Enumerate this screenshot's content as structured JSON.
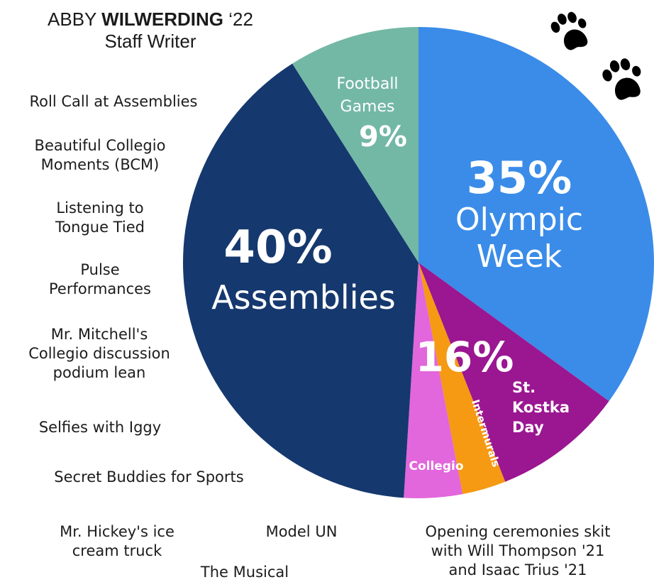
{
  "byline": {
    "author_first": "ABBY",
    "author_last": "WILWERDING",
    "class_year": "‘22",
    "role": "Staff Writer"
  },
  "left_items": [
    "Roll Call at Assemblies",
    "Beautiful Collegio\nMoments (BCM)",
    "Listening to\nTongue Tied",
    "Pulse\nPerformances",
    "Mr. Mitchell's\nCollegio discussion\npodium lean",
    "Selfies with Iggy",
    "Secret Buddies for Sports"
  ],
  "bottom_items": [
    "Mr. Hickey's ice\ncream truck",
    "Model  UN",
    "Opening ceremonies skit\nwith Will Thompson '21\nand Isaac Trius '21",
    "The Musical"
  ],
  "icons": [
    "paw-print-icon",
    "paw-print-icon"
  ],
  "chart_data": {
    "type": "pie",
    "slices": [
      {
        "label": "Olympic Week",
        "value": 35,
        "value_label": "35%",
        "color": "#3a8ce8"
      },
      {
        "label": "St. Kostka Day",
        "value": 9,
        "value_label": "",
        "color": "#9b1691"
      },
      {
        "label": "Intermurals",
        "value": 3,
        "value_label": "",
        "color": "#f59a12"
      },
      {
        "label": "Collegio",
        "value": 4,
        "value_label": "",
        "color": "#e266dc"
      },
      {
        "label": "Assemblies",
        "value": 40,
        "value_label": "40%",
        "color": "#15386e"
      },
      {
        "label": "Football Games",
        "value": 9,
        "value_label": "9%",
        "color": "#73b8a5"
      }
    ],
    "group_label": "16%",
    "start_angle_deg": 0,
    "direction": "clockwise"
  }
}
